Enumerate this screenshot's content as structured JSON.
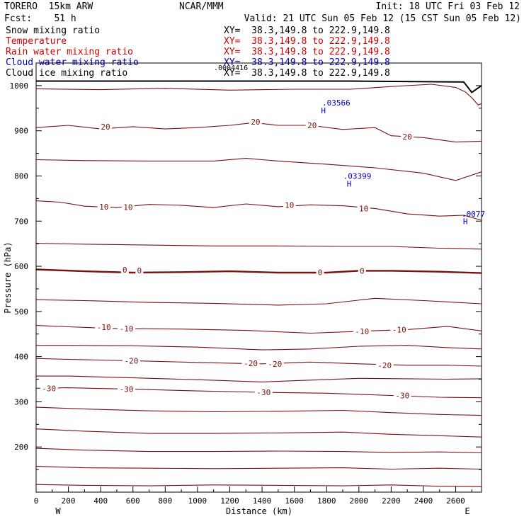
{
  "header": {
    "title": "TORERO  15km ARW",
    "center": "NCAR/MMM",
    "init": "Init: 18 UTC Fri 03 Feb 12",
    "fcst": "Fcst:    51 h",
    "valid": "Valid: 21 UTC Sun 05 Feb 12 (15 CST Sun 05 Feb 12)",
    "fields": [
      {
        "name": "Snow mixing ratio",
        "xy": "XY=  38.3,149.8 to 222.9,149.8",
        "color": "#000000"
      },
      {
        "name": "Temperature",
        "xy": "XY=  38.3,149.8 to 222.9,149.8",
        "color": "#d00000"
      },
      {
        "name": "Rain water mixing ratio",
        "xy": "XY=  38.3,149.8 to 222.9,149.8",
        "color": "#d00000"
      },
      {
        "name": "Cloud water mixing ratio",
        "xy": "XY=  38.3,149.8 to 222.9,149.8",
        "color": "#0000c0"
      },
      {
        "name": "Cloud ice mixing ratio",
        "xy": "XY=  38.3,149.8 to 222.9,149.8",
        "color": "#000000"
      }
    ],
    "overlap_label": ".0004416"
  },
  "chart_data": {
    "type": "line",
    "xlabel": "Distance (km)",
    "ylabel": "Pressure (hPa)",
    "xlim": [
      0,
      2760
    ],
    "ylim": [
      1050,
      100
    ],
    "x_ticks": [
      0,
      200,
      400,
      600,
      800,
      1000,
      1200,
      1400,
      1600,
      1800,
      2000,
      2200,
      2400,
      2600
    ],
    "y_ticks": [
      200,
      300,
      400,
      500,
      600,
      700,
      800,
      900,
      1000
    ],
    "left_end_label": "W",
    "right_end_label": "E",
    "isotherm_color": "#7a1010",
    "isotherm_labels": [
      {
        "text": "-30",
        "x": 80,
        "p": 330
      },
      {
        "text": "-30",
        "x": 560,
        "p": 328
      },
      {
        "text": "-30",
        "x": 1410,
        "p": 321
      },
      {
        "text": "-30",
        "x": 2270,
        "p": 314
      },
      {
        "text": "-20",
        "x": 590,
        "p": 391
      },
      {
        "text": "-20",
        "x": 1330,
        "p": 385
      },
      {
        "text": "-20",
        "x": 1480,
        "p": 384
      },
      {
        "text": "-20",
        "x": 2160,
        "p": 381
      },
      {
        "text": "-10",
        "x": 420,
        "p": 465
      },
      {
        "text": "-10",
        "x": 560,
        "p": 462
      },
      {
        "text": "-10",
        "x": 2020,
        "p": 456
      },
      {
        "text": "-10",
        "x": 2250,
        "p": 460
      },
      {
        "text": "0",
        "x": 550,
        "p": 592
      },
      {
        "text": "0",
        "x": 640,
        "p": 591
      },
      {
        "text": "0",
        "x": 1760,
        "p": 587
      },
      {
        "text": "0",
        "x": 2020,
        "p": 590
      },
      {
        "text": "10",
        "x": 420,
        "p": 732
      },
      {
        "text": "10",
        "x": 570,
        "p": 731
      },
      {
        "text": "10",
        "x": 1570,
        "p": 736
      },
      {
        "text": "10",
        "x": 2030,
        "p": 728
      },
      {
        "text": "20",
        "x": 430,
        "p": 909
      },
      {
        "text": "20",
        "x": 1360,
        "p": 920
      },
      {
        "text": "20",
        "x": 1710,
        "p": 912
      },
      {
        "text": "20",
        "x": 2300,
        "p": 887
      }
    ],
    "isotherms": [
      {
        "x": [
          0,
          300,
          700,
          1100,
          1500,
          1900,
          2200,
          2500,
          2760
        ],
        "p": [
          117,
          115,
          114,
          116,
          115,
          114,
          116,
          113,
          112
        ]
      },
      {
        "x": [
          0,
          300,
          700,
          1100,
          1500,
          1900,
          2200,
          2500,
          2760
        ],
        "p": [
          157,
          154,
          153,
          152,
          153,
          154,
          151,
          153,
          151
        ]
      },
      {
        "x": [
          0,
          300,
          700,
          1100,
          1500,
          1900,
          2200,
          2500,
          2760
        ],
        "p": [
          197,
          193,
          190,
          190,
          191,
          190,
          188,
          189,
          187
        ]
      },
      {
        "x": [
          0,
          300,
          700,
          1100,
          1500,
          1900,
          2200,
          2500,
          2760
        ],
        "p": [
          240,
          235,
          230,
          230,
          231,
          233,
          228,
          225,
          222
        ]
      },
      {
        "x": [
          0,
          300,
          700,
          1100,
          1500,
          1900,
          2200,
          2500,
          2760
        ],
        "p": [
          288,
          284,
          280,
          278,
          279,
          281,
          276,
          272,
          270
        ]
      },
      {
        "x": [
          0,
          200,
          600,
          1000,
          1400,
          1800,
          2200,
          2500,
          2760
        ],
        "p": [
          330,
          331,
          328,
          324,
          321,
          319,
          314,
          310,
          309
        ]
      },
      {
        "x": [
          0,
          200,
          600,
          1000,
          1400,
          1700,
          2000,
          2300,
          2550,
          2760
        ],
        "p": [
          357,
          357,
          353,
          349,
          344,
          348,
          352,
          351,
          350,
          351
        ]
      },
      {
        "x": [
          0,
          200,
          600,
          1000,
          1400,
          1700,
          2000,
          2300,
          2550,
          2760
        ],
        "p": [
          396,
          394,
          391,
          387,
          384,
          388,
          384,
          381,
          381,
          379
        ]
      },
      {
        "x": [
          0,
          200,
          600,
          1000,
          1400,
          1700,
          2000,
          2300,
          2550,
          2760
        ],
        "p": [
          425,
          425,
          424,
          421,
          415,
          417,
          423,
          425,
          420,
          417
        ]
      },
      {
        "x": [
          0,
          200,
          500,
          900,
          1300,
          1700,
          2000,
          2300,
          2550,
          2760
        ],
        "p": [
          469,
          466,
          462,
          461,
          458,
          452,
          456,
          460,
          467,
          457
        ]
      },
      {
        "x": [
          0,
          300,
          700,
          1100,
          1500,
          1800,
          2100,
          2400,
          2760
        ],
        "p": [
          526,
          524,
          520,
          518,
          514,
          517,
          529,
          524,
          517
        ]
      },
      {
        "x": [
          0,
          300,
          600,
          900,
          1200,
          1500,
          1800,
          2000,
          2200,
          2500,
          2760
        ],
        "p": [
          593,
          589,
          586,
          587,
          589,
          586,
          586,
          590,
          590,
          588,
          585
        ]
      },
      {
        "x": [
          0,
          300,
          700,
          1100,
          1500,
          1900,
          2200,
          2500,
          2760
        ],
        "p": [
          651,
          649,
          647,
          645,
          645,
          644,
          644,
          640,
          638
        ]
      },
      {
        "x": [
          0,
          150,
          300,
          500,
          700,
          900,
          1100,
          1300,
          1500,
          1700,
          1900,
          2100,
          2300,
          2500,
          2650,
          2760
        ],
        "p": [
          745,
          742,
          733,
          730,
          737,
          735,
          730,
          738,
          732,
          736,
          734,
          728,
          716,
          711,
          713,
          702
        ]
      },
      {
        "x": [
          0,
          300,
          700,
          1100,
          1300,
          1500,
          1800,
          2100,
          2400,
          2600,
          2760
        ],
        "p": [
          836,
          834,
          833,
          833,
          839,
          833,
          826,
          818,
          806,
          790,
          809
        ]
      },
      {
        "x": [
          0,
          200,
          400,
          600,
          800,
          1000,
          1200,
          1350,
          1500,
          1700,
          1900,
          2100,
          2200,
          2400,
          2600,
          2760
        ],
        "p": [
          907,
          912,
          904,
          909,
          904,
          907,
          912,
          918,
          912,
          912,
          903,
          907,
          889,
          885,
          875,
          877
        ]
      },
      {
        "x": [
          0,
          400,
          800,
          1200,
          1600,
          1950,
          2200,
          2450,
          2600,
          2660,
          2700,
          2740,
          2760
        ],
        "p": [
          993,
          991,
          994,
          990,
          992,
          992,
          998,
          1003,
          996,
          986,
          973,
          957,
          960
        ]
      }
    ],
    "freezing_level_index": 11,
    "terrain": {
      "x": [
        0,
        1950,
        2650,
        2700,
        2760
      ],
      "p": [
        1010,
        1010,
        1008,
        985,
        1000
      ]
    },
    "cloud_water_labels": [
      {
        "text": "H",
        "x": 1940,
        "p": 783
      },
      {
        "text": ".03399",
        "x": 1990,
        "p": 800
      },
      {
        "text": "H",
        "x": 1780,
        "p": 945
      },
      {
        "text": ".03566",
        "x": 1860,
        "p": 962
      },
      {
        "text": "H",
        "x": 2660,
        "p": 700
      },
      {
        "text": ".0077",
        "x": 2710,
        "p": 716
      }
    ]
  }
}
